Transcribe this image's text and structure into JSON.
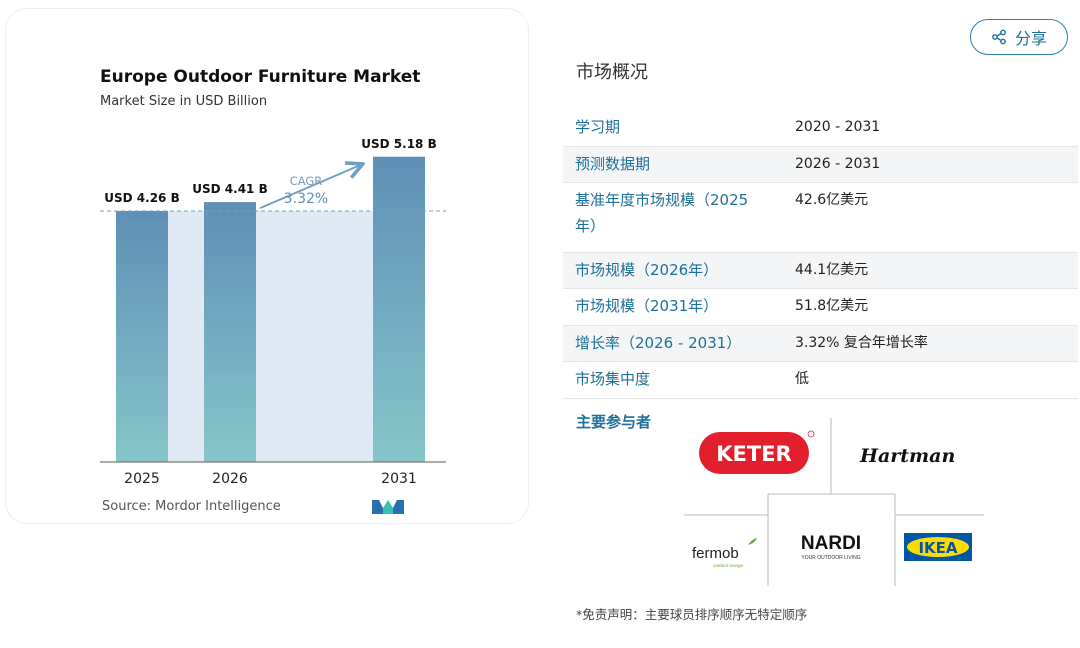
{
  "chart_data": {
    "type": "bar",
    "title": "Europe Outdoor Furniture Market",
    "subtitle": "Market Size in USD Billion",
    "categories": [
      "2025",
      "2026",
      "2031"
    ],
    "values": [
      4.26,
      4.41,
      5.18
    ],
    "value_labels": [
      "USD 4.26 B",
      "USD 4.41 B",
      "USD 5.18 B"
    ],
    "cagr_label": "CAGR",
    "cagr_value": "3.32%",
    "ylim": [
      0,
      5.6
    ],
    "grid": false,
    "source": "Source: Mordor Intelligence",
    "colors": {
      "bar_top": "#5f8fb6",
      "bar_bottom": "#86c6c9",
      "band": "#dfe9f3",
      "arrow": "#6f9fc2",
      "dash": "#6f9fc2"
    }
  },
  "share": {
    "label": "分享",
    "icon": "share-icon"
  },
  "overview": {
    "title": "市场概况",
    "rows": [
      {
        "key": "学习期",
        "value": "2020 - 2031"
      },
      {
        "key": "预测数据期",
        "value": "2026 - 2031"
      },
      {
        "key": "基准年度市场规模（2025年）",
        "value": "42.6亿美元"
      },
      {
        "key": "市场规模（2026年）",
        "value": "44.1亿美元"
      },
      {
        "key": "市场规模（2031年）",
        "value": "51.8亿美元"
      },
      {
        "key": "增长率（2026 - 2031）",
        "value": "3.32% 复合年增长率"
      },
      {
        "key": "市场集中度",
        "value": "低"
      }
    ]
  },
  "players": {
    "label": "主要参与者",
    "logos": {
      "keter": "KETER",
      "hartman": "Hartman",
      "fermob": "fermob",
      "fermob_tag": "outdoor lounge",
      "nardi": "NARDI",
      "nardi_tag": "YOUR OUTDOOR LIVING",
      "ikea": "IKEA"
    }
  },
  "disclaimer": "*免责声明：主要球员排序顺序无特定顺序"
}
